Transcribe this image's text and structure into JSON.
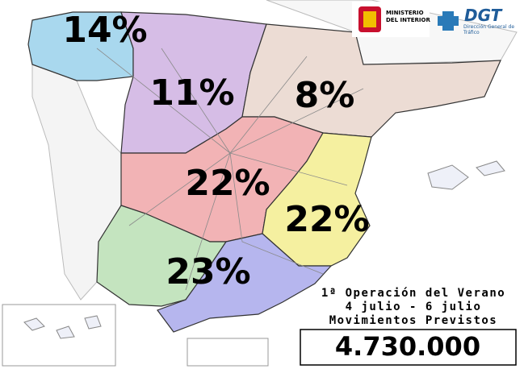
{
  "logos": {
    "ministry": "MINISTERIO DEL INTERIOR",
    "dgt": "DGT",
    "dgt_subtitle": "Dirección General de Tráfico"
  },
  "regions": [
    {
      "label": "14%"
    },
    {
      "label": "11%"
    },
    {
      "label": "8%"
    },
    {
      "label": "22%"
    },
    {
      "label": "22%"
    },
    {
      "label": "23%"
    }
  ],
  "info": {
    "line1": "1ª Operación del Verano",
    "line2": "4 julio - 6 julio",
    "line3": "Movimientos Previstos",
    "total": "4.730.000"
  }
}
